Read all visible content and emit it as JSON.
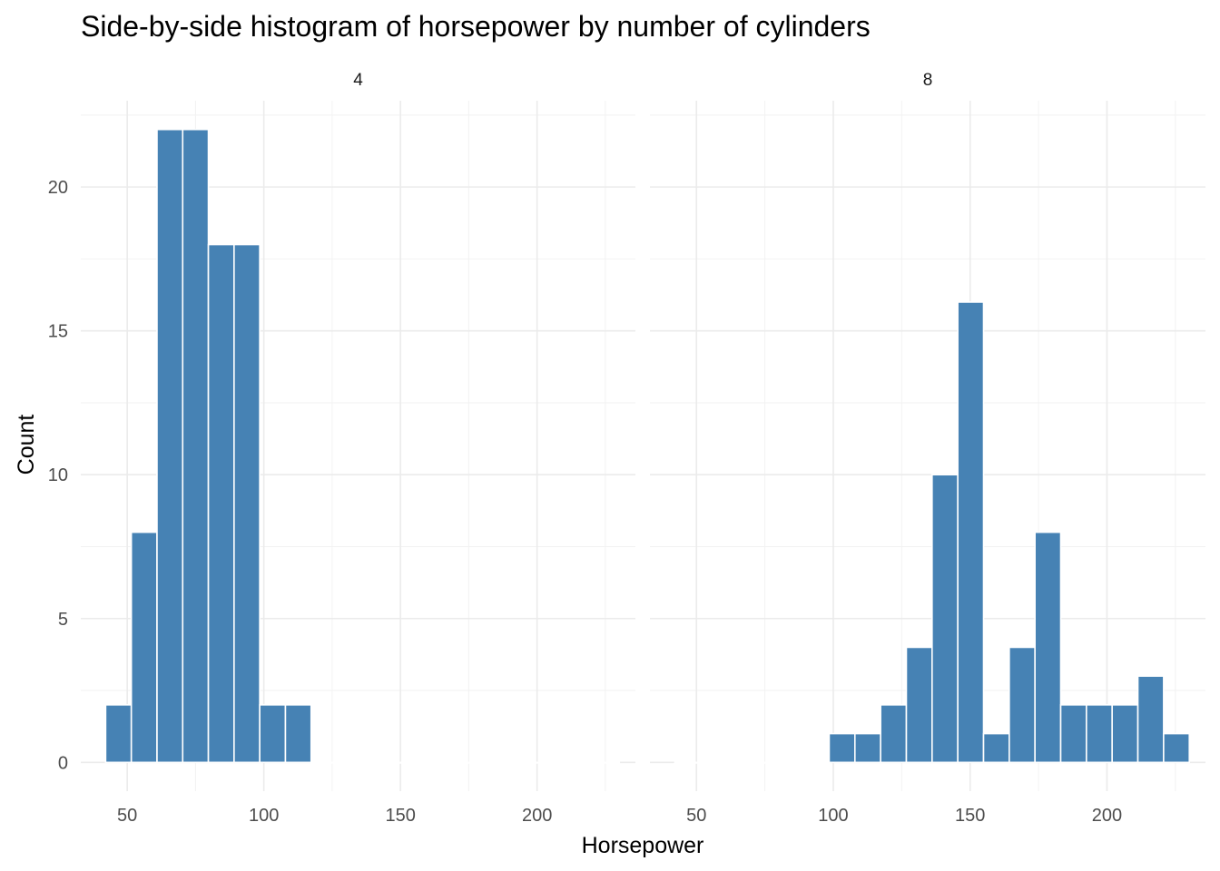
{
  "chart_data": {
    "type": "bar",
    "title": "Side-by-side histogram of horsepower by number of cylinders",
    "xlabel": "Horsepower",
    "ylabel": "Count",
    "xlim": [
      33,
      236
    ],
    "ylim": [
      -1,
      23
    ],
    "x_ticks": [
      50,
      100,
      150,
      200
    ],
    "y_ticks": [
      0,
      5,
      10,
      15,
      20
    ],
    "bin_width": 9.4,
    "grid": true,
    "legend": "none",
    "bar_color": "#4682B4",
    "bar_edge_color": "#ffffff",
    "facets": [
      {
        "label": "4",
        "bins": [
          {
            "x": 46.8,
            "count": 2
          },
          {
            "x": 56.2,
            "count": 8
          },
          {
            "x": 65.6,
            "count": 22
          },
          {
            "x": 75.0,
            "count": 22
          },
          {
            "x": 84.4,
            "count": 18
          },
          {
            "x": 93.8,
            "count": 18
          },
          {
            "x": 103.2,
            "count": 2
          },
          {
            "x": 112.6,
            "count": 2
          },
          {
            "x": 122.0,
            "count": 0
          },
          {
            "x": 131.4,
            "count": 0
          },
          {
            "x": 140.8,
            "count": 0
          },
          {
            "x": 150.2,
            "count": 0
          },
          {
            "x": 159.6,
            "count": 0
          },
          {
            "x": 169.0,
            "count": 0
          },
          {
            "x": 178.4,
            "count": 0
          },
          {
            "x": 187.8,
            "count": 0
          },
          {
            "x": 197.2,
            "count": 0
          },
          {
            "x": 206.6,
            "count": 0
          },
          {
            "x": 216.0,
            "count": 0
          },
          {
            "x": 225.4,
            "count": 0
          }
        ]
      },
      {
        "label": "8",
        "bins": [
          {
            "x": 46.8,
            "count": 0
          },
          {
            "x": 56.2,
            "count": 0
          },
          {
            "x": 65.6,
            "count": 0
          },
          {
            "x": 75.0,
            "count": 0
          },
          {
            "x": 84.4,
            "count": 0
          },
          {
            "x": 93.8,
            "count": 0
          },
          {
            "x": 103.2,
            "count": 1
          },
          {
            "x": 112.6,
            "count": 1
          },
          {
            "x": 122.0,
            "count": 2
          },
          {
            "x": 131.4,
            "count": 4
          },
          {
            "x": 140.8,
            "count": 10
          },
          {
            "x": 150.2,
            "count": 16
          },
          {
            "x": 159.6,
            "count": 1
          },
          {
            "x": 169.0,
            "count": 4
          },
          {
            "x": 178.4,
            "count": 8
          },
          {
            "x": 187.8,
            "count": 2
          },
          {
            "x": 197.2,
            "count": 2
          },
          {
            "x": 206.6,
            "count": 2
          },
          {
            "x": 216.0,
            "count": 3
          },
          {
            "x": 225.4,
            "count": 1
          }
        ]
      }
    ]
  }
}
